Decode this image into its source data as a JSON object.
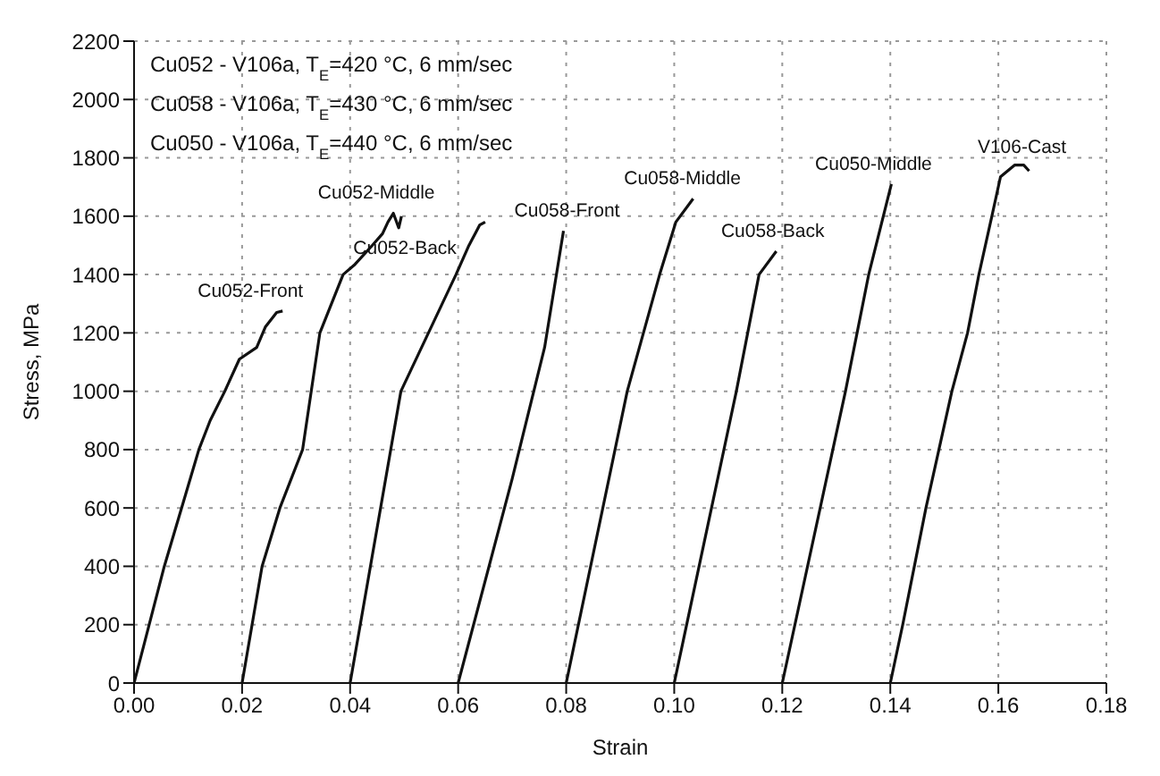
{
  "chart_data": {
    "type": "line",
    "xlabel": "Strain",
    "ylabel": "Stress, MPa",
    "xlim": [
      0,
      0.18
    ],
    "ylim": [
      0,
      2200
    ],
    "xticks": [
      {
        "value": 0,
        "label": "0.00"
      },
      {
        "value": 0.02,
        "label": "0.02"
      },
      {
        "value": 0.04,
        "label": "0.04"
      },
      {
        "value": 0.06,
        "label": "0.06"
      },
      {
        "value": 0.08,
        "label": "0.08"
      },
      {
        "value": 0.1,
        "label": "0.10"
      },
      {
        "value": 0.12,
        "label": "0.12"
      },
      {
        "value": 0.14,
        "label": "0.14"
      },
      {
        "value": 0.16,
        "label": "0.16"
      },
      {
        "value": 0.18,
        "label": "0.18"
      }
    ],
    "yticks": [
      0,
      200,
      400,
      600,
      800,
      1000,
      1200,
      1400,
      1600,
      1800,
      2000,
      2200
    ],
    "grid": true,
    "marker": "none",
    "line_style": "solid",
    "annotations": [
      "Cu052 - V106a, T$_{E}$=420 °C, 6 mm/sec",
      "Cu058 - V106a, T$_{E}$=430 °C, 6 mm/sec",
      "Cu050 - V106a, T$_{E}$=440 °C, 6 mm/sec"
    ],
    "series": [
      {
        "name": "Cu052-Front",
        "color": "#111111",
        "x": [
          0,
          0.0056,
          0.0088,
          0.012,
          0.0141,
          0.0168,
          0.0195,
          0.0227,
          0.0243,
          0.0264,
          0.0275
        ],
        "values": [
          0,
          400,
          600,
          800,
          900,
          1000,
          1110,
          1150,
          1220,
          1270,
          1275
        ]
      },
      {
        "name": "Cu052-Middle",
        "color": "#111111",
        "x": [
          0.02,
          0.0237,
          0.027,
          0.0312,
          0.0344,
          0.0387,
          0.0409,
          0.0441,
          0.046,
          0.047,
          0.048,
          0.049,
          0.0495
        ],
        "values": [
          0,
          400,
          600,
          800,
          1200,
          1400,
          1435,
          1500,
          1540,
          1580,
          1610,
          1560,
          1600
        ]
      },
      {
        "name": "Cu052-Back",
        "color": "#111111",
        "x": [
          0.04,
          0.0494,
          0.0596,
          0.062,
          0.064,
          0.065
        ],
        "values": [
          0,
          1000,
          1400,
          1500,
          1570,
          1580
        ]
      },
      {
        "name": "Cu058-Front",
        "color": "#111111",
        "x": [
          0.06,
          0.07,
          0.076,
          0.0795
        ],
        "values": [
          0,
          700,
          1150,
          1550
        ]
      },
      {
        "name": "Cu058-Middle",
        "color": "#111111",
        "x": [
          0.08,
          0.0913,
          0.0973,
          0.1003,
          0.1035
        ],
        "values": [
          0,
          1000,
          1400,
          1580,
          1660
        ]
      },
      {
        "name": "Cu058-Back",
        "color": "#111111",
        "x": [
          0.1,
          0.1115,
          0.1157,
          0.1189
        ],
        "values": [
          0,
          1000,
          1400,
          1480
        ]
      },
      {
        "name": "Cu050-Middle",
        "color": "#111111",
        "x": [
          0.12,
          0.1317,
          0.136,
          0.1402
        ],
        "values": [
          0,
          1000,
          1400,
          1710
        ]
      },
      {
        "name": "V106-Cast",
        "color": "#111111",
        "x": [
          0.14,
          0.1423,
          0.1466,
          0.149,
          0.1514,
          0.1543,
          0.1564,
          0.1588,
          0.1604,
          0.163,
          0.1647,
          0.1657
        ],
        "values": [
          0,
          200,
          600,
          800,
          1000,
          1200,
          1400,
          1600,
          1735,
          1775,
          1775,
          1755
        ]
      }
    ]
  }
}
